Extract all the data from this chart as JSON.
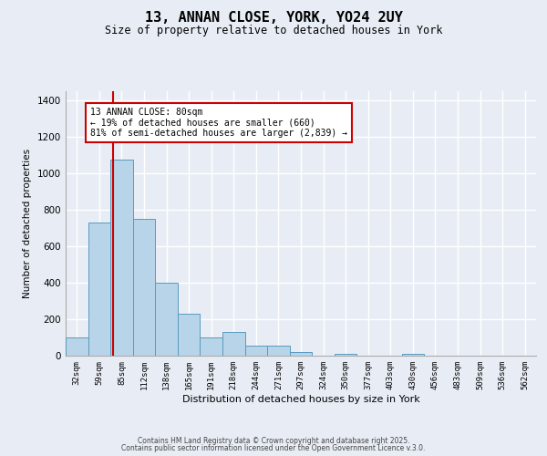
{
  "title_line1": "13, ANNAN CLOSE, YORK, YO24 2UY",
  "title_line2": "Size of property relative to detached houses in York",
  "xlabel": "Distribution of detached houses by size in York",
  "ylabel": "Number of detached properties",
  "categories": [
    "32sqm",
    "59sqm",
    "85sqm",
    "112sqm",
    "138sqm",
    "165sqm",
    "191sqm",
    "218sqm",
    "244sqm",
    "271sqm",
    "297sqm",
    "324sqm",
    "350sqm",
    "377sqm",
    "403sqm",
    "430sqm",
    "456sqm",
    "483sqm",
    "509sqm",
    "536sqm",
    "562sqm"
  ],
  "values": [
    100,
    730,
    1075,
    750,
    400,
    230,
    100,
    130,
    55,
    55,
    18,
    0,
    10,
    0,
    0,
    8,
    0,
    0,
    0,
    0,
    0
  ],
  "bar_color": "#b8d4e8",
  "bar_edge_color": "#5a9abf",
  "background_color": "#e8edf5",
  "grid_color": "#ffffff",
  "red_line_x": 1.62,
  "annotation_title": "13 ANNAN CLOSE: 80sqm",
  "annotation_line1": "← 19% of detached houses are smaller (660)",
  "annotation_line2": "81% of semi-detached houses are larger (2,839) →",
  "annotation_box_color": "#ffffff",
  "annotation_border_color": "#cc0000",
  "red_line_color": "#cc0000",
  "ylim": [
    0,
    1450
  ],
  "yticks": [
    0,
    200,
    400,
    600,
    800,
    1000,
    1200,
    1400
  ],
  "footer1": "Contains HM Land Registry data © Crown copyright and database right 2025.",
  "footer2": "Contains public sector information licensed under the Open Government Licence v.3.0."
}
